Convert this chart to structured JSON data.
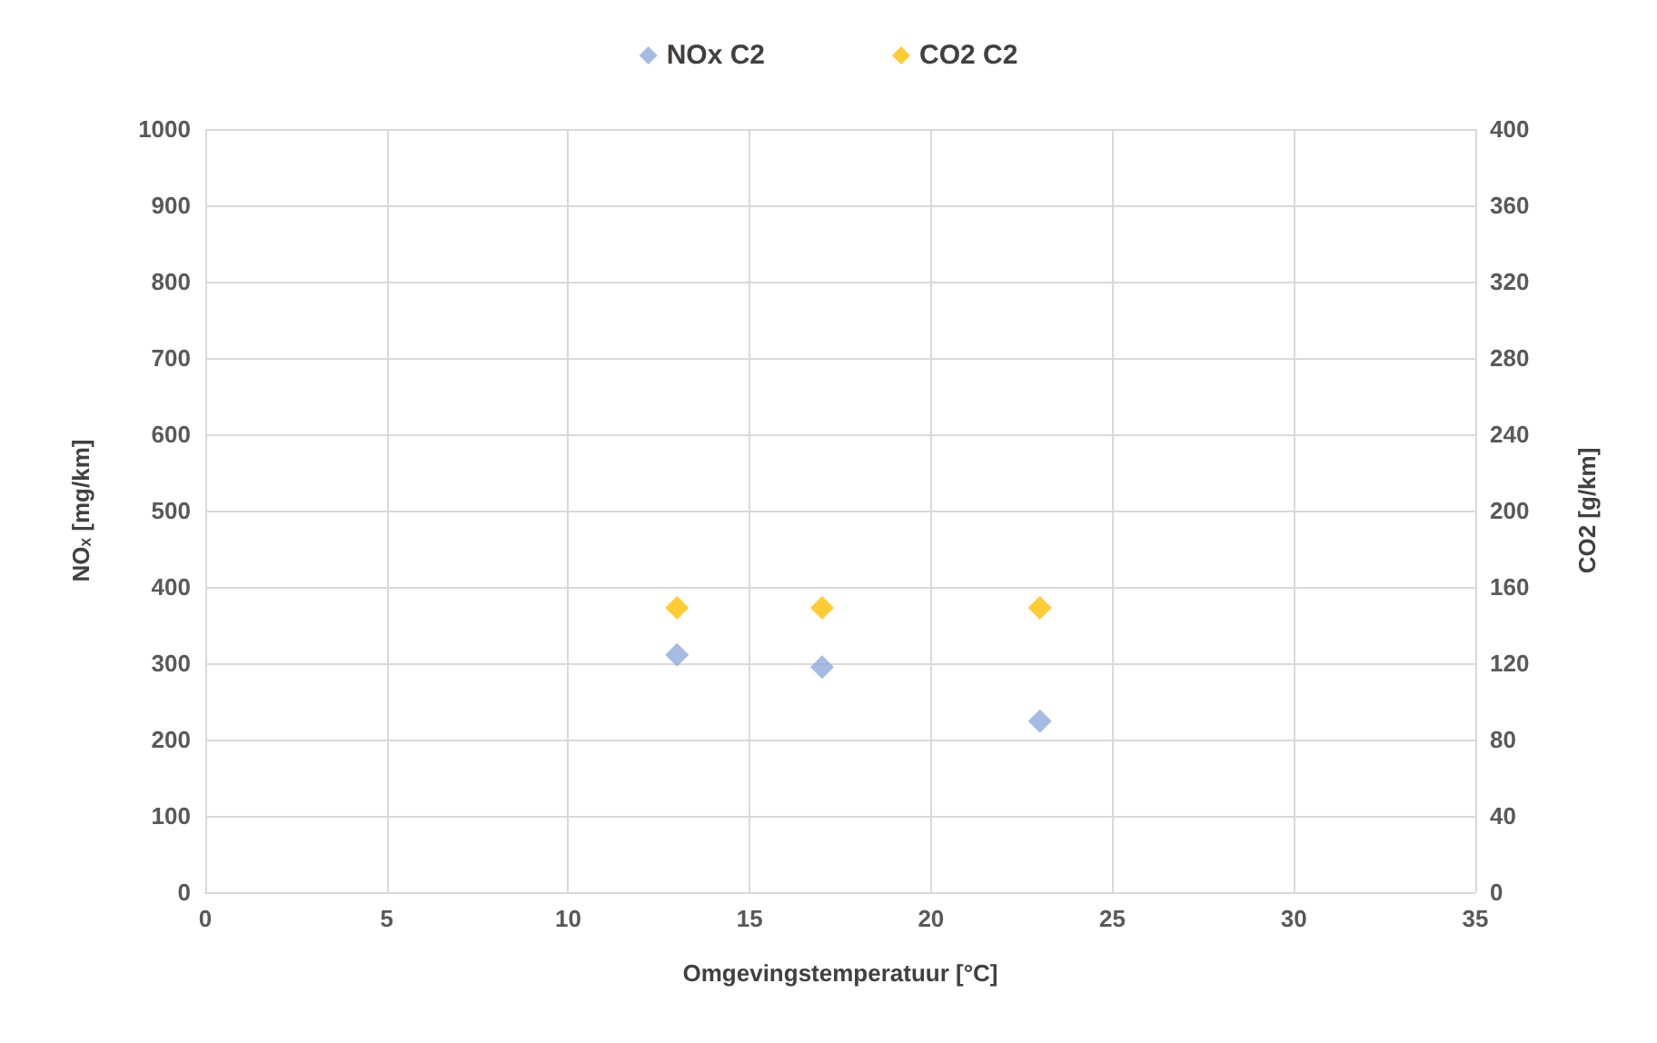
{
  "chart_data": {
    "type": "scatter",
    "xlabel": "Omgevingstemperatuur [°C]",
    "ylabel": "NOₓ [mg/km]",
    "y2label": "CO2 [g/km]",
    "x": [
      13,
      17,
      23
    ],
    "series": [
      {
        "name": "NOx C2",
        "color": "#8faadc",
        "values": [
          311,
          295,
          224
        ]
      },
      {
        "name": "CO2 C2",
        "color": "#ffc000",
        "values": [
          149,
          149,
          149
        ],
        "axis": "y2"
      }
    ],
    "xlim": [
      0,
      35
    ],
    "xticks": [
      0,
      5,
      10,
      15,
      20,
      25,
      30,
      35
    ],
    "ylim": [
      0,
      1000
    ],
    "yticks": [
      0,
      100,
      200,
      300,
      400,
      500,
      600,
      700,
      800,
      900,
      1000
    ],
    "y2lim": [
      0,
      400
    ],
    "y2ticks": [
      0,
      40,
      80,
      120,
      160,
      200,
      240,
      280,
      320,
      360,
      400
    ],
    "grid": true,
    "legend": "top",
    "marker": "diamond"
  }
}
